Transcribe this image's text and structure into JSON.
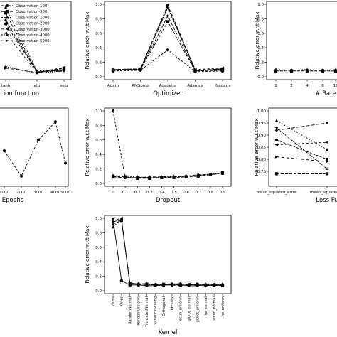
{
  "chart_data": [
    {
      "type": "line",
      "xlabel": "ion function",
      "ylabel": "",
      "categories": [
        "tanh",
        "elu",
        "selu"
      ],
      "legend": {
        "placement": "top-left",
        "entries": [
          "Observation-100",
          "Observation-500",
          "Observation-1000",
          "Observation-2000",
          "Observation-3000",
          "Observation-4000",
          "Observation-5000"
        ]
      },
      "series": [
        {
          "name": "Observation-100",
          "values": [
            0.73,
            0.07,
            0.1
          ]
        },
        {
          "name": "Observation-500",
          "values": [
            0.88,
            0.06,
            0.12
          ]
        },
        {
          "name": "Observation-1000",
          "values": [
            0.96,
            0.08,
            0.11
          ]
        },
        {
          "name": "Observation-2000",
          "values": [
            0.78,
            0.07,
            0.09
          ]
        },
        {
          "name": "Observation-3000",
          "values": [
            0.6,
            0.06,
            0.13
          ]
        },
        {
          "name": "Observation-4000",
          "values": [
            0.14,
            0.05,
            0.08
          ]
        },
        {
          "name": "Observation-5000",
          "values": [
            0.12,
            0.06,
            0.09
          ]
        }
      ]
    },
    {
      "type": "line",
      "xlabel": "Optimizer",
      "ylabel": "Relative error w.r.t Max",
      "categories": [
        "Adam",
        "RMSprop",
        "Adadelta",
        "Adamax",
        "Nadam"
      ],
      "ylim": [
        0,
        1.0
      ],
      "yticks": [
        "0.0",
        "0.2",
        "0.4",
        "0.6",
        "0.8",
        "1.0"
      ],
      "series": [
        {
          "name": "Observation-100",
          "values": [
            0.08,
            0.09,
            0.37,
            0.07,
            0.08
          ]
        },
        {
          "name": "Observation-500",
          "values": [
            0.09,
            0.1,
            0.76,
            0.08,
            0.09
          ]
        },
        {
          "name": "Observation-1000",
          "values": [
            0.1,
            0.11,
            0.97,
            0.09,
            0.1
          ]
        },
        {
          "name": "Observation-2000",
          "values": [
            0.09,
            0.1,
            0.84,
            0.08,
            0.11
          ]
        },
        {
          "name": "Observation-3000",
          "values": [
            0.1,
            0.11,
            0.99,
            0.1,
            0.12
          ]
        },
        {
          "name": "Observation-4000",
          "values": [
            0.09,
            0.1,
            0.95,
            0.09,
            0.1
          ]
        },
        {
          "name": "Observation-5000",
          "values": [
            0.1,
            0.11,
            0.98,
            0.09,
            0.11
          ]
        }
      ]
    },
    {
      "type": "line",
      "xlabel": "# Bate",
      "ylabel": "Relative error w.r.t Max",
      "categories": [
        "1",
        "2",
        "4",
        "8",
        "16"
      ],
      "ylim": [
        0,
        1.0
      ],
      "yticks": [
        "0.0",
        "0.2",
        "0.4",
        "0.6",
        "0.8",
        "1.0"
      ],
      "series": [
        {
          "name": "Observation-100",
          "values": [
            0.09,
            0.09,
            0.09,
            0.09,
            0.09
          ]
        },
        {
          "name": "Observation-500",
          "values": [
            0.08,
            0.08,
            0.08,
            0.08,
            0.08
          ]
        },
        {
          "name": "Observation-1000",
          "values": [
            0.1,
            0.09,
            0.1,
            0.09,
            0.1
          ]
        }
      ]
    },
    {
      "type": "line",
      "xlabel": "Epochs",
      "ylabel": "",
      "categories": [
        "1000",
        "2000",
        "3000",
        "4000",
        "5000"
      ],
      "series": [
        {
          "name": "Observation-100",
          "values": [
            0.45,
            0.1,
            0.6,
            0.85,
            0.28
          ]
        }
      ]
    },
    {
      "type": "line",
      "xlabel": "Dropout",
      "ylabel": "Relative error w.r.t Max",
      "categories": [
        "0",
        "0.1",
        "0.2",
        "0.3",
        "0.4",
        "0.5",
        "0.6",
        "0.7",
        "0.8",
        "0.9"
      ],
      "ylim": [
        0,
        1.0
      ],
      "yticks": [
        "0.0",
        "0.2",
        "0.4",
        "0.6",
        "0.8",
        "1.0"
      ],
      "series": [
        {
          "name": "Observation-100",
          "values": [
            1.0,
            0.08,
            0.08,
            0.08,
            0.08,
            0.09,
            0.1,
            0.11,
            0.12,
            0.14
          ]
        },
        {
          "name": "Observation-500",
          "values": [
            0.1,
            0.09,
            0.07,
            0.07,
            0.08,
            0.08,
            0.09,
            0.1,
            0.12,
            0.15
          ]
        },
        {
          "name": "Observation-1000",
          "values": [
            0.11,
            0.1,
            0.09,
            0.08,
            0.09,
            0.1,
            0.1,
            0.11,
            0.13,
            0.14
          ]
        },
        {
          "name": "Observation-2000",
          "values": [
            0.09,
            0.08,
            0.08,
            0.09,
            0.09,
            0.09,
            0.1,
            0.12,
            0.12,
            0.15
          ]
        }
      ]
    },
    {
      "type": "line",
      "xlabel": "Loss Fu",
      "ylabel": "Relative error w.r.t Max",
      "categories": [
        "mean_squared_error",
        "mean_squared_lo"
      ],
      "ylim": [
        0.7,
        1.0
      ],
      "yticks": [
        "0.75",
        "0.80",
        "0.85",
        "0.90",
        "0.95",
        "1.00"
      ],
      "series": [
        {
          "name": "Observation-100",
          "values": [
            0.88,
            0.8
          ]
        },
        {
          "name": "Observation-500",
          "values": [
            0.74,
            0.74
          ]
        },
        {
          "name": "Observation-1000",
          "values": [
            0.96,
            0.84
          ]
        },
        {
          "name": "Observation-2000",
          "values": [
            0.92,
            0.95
          ]
        },
        {
          "name": "Observation-3000",
          "values": [
            0.86,
            0.87
          ]
        },
        {
          "name": "Observation-4000",
          "values": [
            0.93,
            0.76
          ]
        },
        {
          "name": "Observation-5000",
          "values": [
            0.81,
            0.79
          ]
        }
      ]
    },
    {
      "type": "line",
      "xlabel": "Kernel",
      "ylabel": "Relative error w.r.t Max",
      "categories": [
        "Zeros",
        "Ones",
        "RandomNormal",
        "RandomUniform",
        "TruncatedNormal",
        "VarianceScaling",
        "Orthogonal",
        "Identity",
        "lecun_uniform",
        "glorot_normal",
        "glorot_uniform",
        "he_normal",
        "lecun_normal",
        "he_uniform"
      ],
      "ylim": [
        0,
        1.0
      ],
      "yticks": [
        "0.0",
        "0.2",
        "0.4",
        "0.6",
        "0.8",
        "1.0"
      ],
      "series": [
        {
          "name": "Observation-100",
          "values": [
            0.99,
            0.14,
            0.08,
            0.08,
            0.07,
            0.07,
            0.08,
            0.08,
            0.08,
            0.07,
            0.07,
            0.08,
            0.07,
            0.08
          ]
        },
        {
          "name": "Observation-500",
          "values": [
            0.92,
            0.97,
            0.1,
            0.09,
            0.09,
            0.08,
            0.09,
            0.09,
            0.08,
            0.08,
            0.09,
            0.08,
            0.08,
            0.07
          ]
        },
        {
          "name": "Observation-1000",
          "values": [
            0.88,
            0.99,
            0.09,
            0.1,
            0.08,
            0.09,
            0.08,
            0.1,
            0.09,
            0.09,
            0.08,
            0.09,
            0.09,
            0.08
          ]
        },
        {
          "name": "Observation-2000",
          "values": [
            0.95,
            0.98,
            0.11,
            0.09,
            0.1,
            0.08,
            0.07,
            0.09,
            0.1,
            0.08,
            0.09,
            0.07,
            0.08,
            0.09
          ]
        },
        {
          "name": "Observation-3000",
          "values": [
            0.97,
            1.0,
            0.08,
            0.08,
            0.09,
            0.09,
            0.09,
            0.08,
            0.07,
            0.09,
            0.07,
            0.08,
            0.09,
            0.08
          ]
        }
      ]
    }
  ]
}
